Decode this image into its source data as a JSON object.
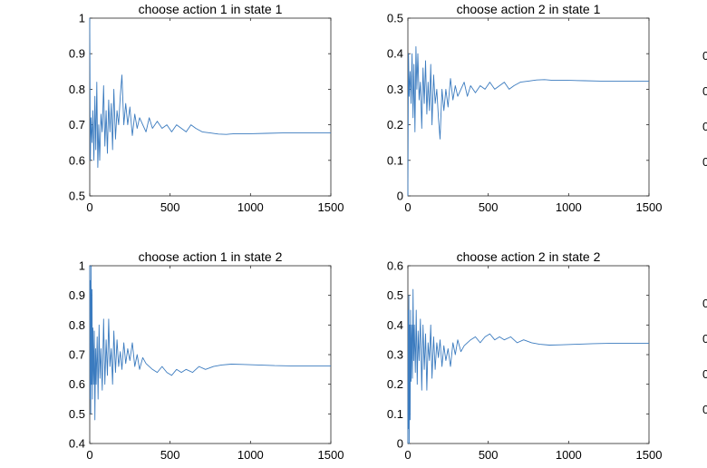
{
  "chart_data": [
    {
      "type": "line",
      "title": "choose action 1 in state 1",
      "xlim": [
        0,
        1500
      ],
      "ylim": [
        0.5,
        1
      ],
      "xticks": [
        0,
        500,
        1000,
        1500
      ],
      "yticks": [
        0.5,
        0.6,
        0.7,
        0.8,
        0.9,
        1
      ],
      "xtick_labels": [
        "0",
        "500",
        "1000",
        "1500"
      ],
      "ytick_labels": [
        "0.5",
        "0.6",
        "0.7",
        "0.8",
        "0.9",
        "1"
      ],
      "line_color": "#3b7bbf",
      "series": [
        {
          "x": [
            0,
            2,
            4,
            8,
            14,
            20,
            26,
            32,
            38,
            44,
            50,
            56,
            62,
            70,
            78,
            86,
            94,
            102,
            110,
            118,
            126,
            134,
            142,
            150,
            160,
            170,
            180,
            190,
            200,
            212,
            224,
            236,
            250,
            265,
            280,
            295,
            310,
            330,
            350,
            370,
            390,
            420,
            450,
            480,
            510,
            540,
            570,
            600,
            630,
            660,
            700,
            750,
            800,
            850,
            900,
            1000,
            1100,
            1200,
            1300,
            1400,
            1500
          ],
          "y": [
            1.0,
            0.75,
            0.6,
            0.72,
            0.65,
            0.74,
            0.6,
            0.78,
            0.63,
            0.82,
            0.58,
            0.7,
            0.6,
            0.73,
            0.68,
            0.81,
            0.64,
            0.74,
            0.62,
            0.77,
            0.68,
            0.76,
            0.63,
            0.8,
            0.66,
            0.74,
            0.7,
            0.78,
            0.84,
            0.7,
            0.76,
            0.7,
            0.75,
            0.67,
            0.73,
            0.69,
            0.72,
            0.7,
            0.68,
            0.72,
            0.69,
            0.71,
            0.69,
            0.7,
            0.68,
            0.7,
            0.69,
            0.68,
            0.7,
            0.69,
            0.68,
            0.677,
            0.674,
            0.673,
            0.675,
            0.675,
            0.676,
            0.677,
            0.677,
            0.677,
            0.677
          ]
        }
      ]
    },
    {
      "type": "line",
      "title": "choose action 2 in state 1",
      "xlim": [
        0,
        1500
      ],
      "ylim": [
        0,
        0.5
      ],
      "xticks": [
        0,
        500,
        1000,
        1500
      ],
      "yticks": [
        0,
        0.1,
        0.2,
        0.3,
        0.4,
        0.5
      ],
      "xtick_labels": [
        "0",
        "500",
        "1000",
        "1500"
      ],
      "ytick_labels": [
        "0",
        "0.1",
        "0.2",
        "0.3",
        "0.4",
        "0.5"
      ],
      "line_color": "#3b7bbf",
      "series": [
        {
          "x": [
            0,
            2,
            4,
            8,
            14,
            20,
            26,
            32,
            38,
            44,
            50,
            56,
            62,
            70,
            78,
            86,
            94,
            102,
            110,
            118,
            126,
            134,
            142,
            150,
            160,
            170,
            180,
            190,
            200,
            212,
            224,
            236,
            250,
            265,
            280,
            295,
            310,
            330,
            350,
            370,
            390,
            420,
            450,
            480,
            510,
            540,
            570,
            600,
            630,
            660,
            700,
            750,
            800,
            850,
            900,
            1000,
            1100,
            1200,
            1300,
            1400,
            1500
          ],
          "y": [
            0.0,
            0.25,
            0.4,
            0.28,
            0.35,
            0.26,
            0.4,
            0.22,
            0.37,
            0.18,
            0.42,
            0.3,
            0.4,
            0.27,
            0.32,
            0.19,
            0.36,
            0.26,
            0.38,
            0.23,
            0.32,
            0.24,
            0.37,
            0.2,
            0.34,
            0.26,
            0.3,
            0.22,
            0.16,
            0.3,
            0.24,
            0.3,
            0.25,
            0.33,
            0.27,
            0.31,
            0.28,
            0.3,
            0.32,
            0.28,
            0.31,
            0.29,
            0.31,
            0.3,
            0.32,
            0.3,
            0.31,
            0.32,
            0.3,
            0.31,
            0.32,
            0.323,
            0.326,
            0.327,
            0.325,
            0.325,
            0.324,
            0.323,
            0.323,
            0.323,
            0.323
          ]
        }
      ]
    },
    {
      "type": "line",
      "title": "choose action 1 in state 2",
      "xlim": [
        0,
        1500
      ],
      "ylim": [
        0.4,
        1
      ],
      "xticks": [
        0,
        500,
        1000,
        1500
      ],
      "yticks": [
        0.4,
        0.5,
        0.6,
        0.7,
        0.8,
        0.9,
        1
      ],
      "xtick_labels": [
        "0",
        "500",
        "1000",
        "1500"
      ],
      "ytick_labels": [
        "0.4",
        "0.5",
        "0.6",
        "0.7",
        "0.8",
        "0.9",
        "1"
      ],
      "line_color": "#3b7bbf",
      "series": [
        {
          "x": [
            0,
            2,
            4,
            6,
            8,
            11,
            14,
            17,
            20,
            24,
            28,
            32,
            36,
            40,
            46,
            52,
            58,
            64,
            70,
            78,
            86,
            94,
            102,
            110,
            118,
            126,
            134,
            142,
            150,
            160,
            170,
            180,
            190,
            200,
            212,
            224,
            236,
            250,
            265,
            280,
            295,
            310,
            330,
            350,
            370,
            390,
            420,
            450,
            480,
            510,
            540,
            570,
            600,
            640,
            680,
            720,
            770,
            820,
            880,
            950,
            1050,
            1150,
            1250,
            1350,
            1500
          ],
          "y": [
            1.0,
            0.55,
            0.95,
            0.5,
            1.0,
            0.6,
            0.92,
            0.55,
            0.79,
            0.6,
            0.78,
            0.48,
            0.72,
            0.6,
            0.76,
            0.55,
            0.8,
            0.62,
            0.72,
            0.58,
            0.82,
            0.6,
            0.75,
            0.63,
            0.82,
            0.66,
            0.72,
            0.6,
            0.78,
            0.64,
            0.75,
            0.66,
            0.71,
            0.65,
            0.74,
            0.67,
            0.72,
            0.68,
            0.74,
            0.66,
            0.7,
            0.65,
            0.69,
            0.67,
            0.66,
            0.65,
            0.64,
            0.66,
            0.64,
            0.63,
            0.65,
            0.64,
            0.65,
            0.64,
            0.66,
            0.65,
            0.66,
            0.665,
            0.668,
            0.667,
            0.665,
            0.663,
            0.662,
            0.662,
            0.662
          ]
        }
      ]
    },
    {
      "type": "line",
      "title": "choose action 2 in state 2",
      "xlim": [
        0,
        1500
      ],
      "ylim": [
        0,
        0.6
      ],
      "xticks": [
        0,
        500,
        1000,
        1500
      ],
      "yticks": [
        0,
        0.1,
        0.2,
        0.3,
        0.4,
        0.5,
        0.6
      ],
      "xtick_labels": [
        "0",
        "500",
        "1000",
        "1500"
      ],
      "ytick_labels": [
        "0",
        "0.1",
        "0.2",
        "0.3",
        "0.4",
        "0.5",
        "0.6"
      ],
      "line_color": "#3b7bbf",
      "series": [
        {
          "x": [
            0,
            2,
            4,
            6,
            8,
            11,
            14,
            17,
            20,
            24,
            28,
            32,
            36,
            40,
            46,
            52,
            58,
            64,
            70,
            78,
            86,
            94,
            102,
            110,
            118,
            126,
            134,
            142,
            150,
            160,
            170,
            180,
            190,
            200,
            212,
            224,
            236,
            250,
            265,
            280,
            295,
            310,
            330,
            350,
            370,
            390,
            420,
            450,
            480,
            510,
            540,
            570,
            600,
            640,
            680,
            720,
            770,
            820,
            880,
            950,
            1050,
            1150,
            1250,
            1350,
            1500
          ],
          "y": [
            0.0,
            0.45,
            0.05,
            0.5,
            0.0,
            0.4,
            0.08,
            0.45,
            0.21,
            0.4,
            0.22,
            0.52,
            0.28,
            0.4,
            0.24,
            0.45,
            0.2,
            0.38,
            0.28,
            0.42,
            0.18,
            0.4,
            0.25,
            0.37,
            0.18,
            0.34,
            0.28,
            0.4,
            0.22,
            0.36,
            0.25,
            0.34,
            0.29,
            0.35,
            0.26,
            0.33,
            0.28,
            0.32,
            0.26,
            0.34,
            0.3,
            0.35,
            0.31,
            0.33,
            0.34,
            0.35,
            0.36,
            0.34,
            0.36,
            0.37,
            0.35,
            0.36,
            0.35,
            0.36,
            0.34,
            0.35,
            0.34,
            0.335,
            0.332,
            0.333,
            0.335,
            0.337,
            0.338,
            0.338,
            0.338
          ]
        }
      ]
    }
  ],
  "edge_glyphs": [
    "0",
    "0",
    "0",
    "0",
    "0",
    "0",
    "0",
    "0"
  ]
}
